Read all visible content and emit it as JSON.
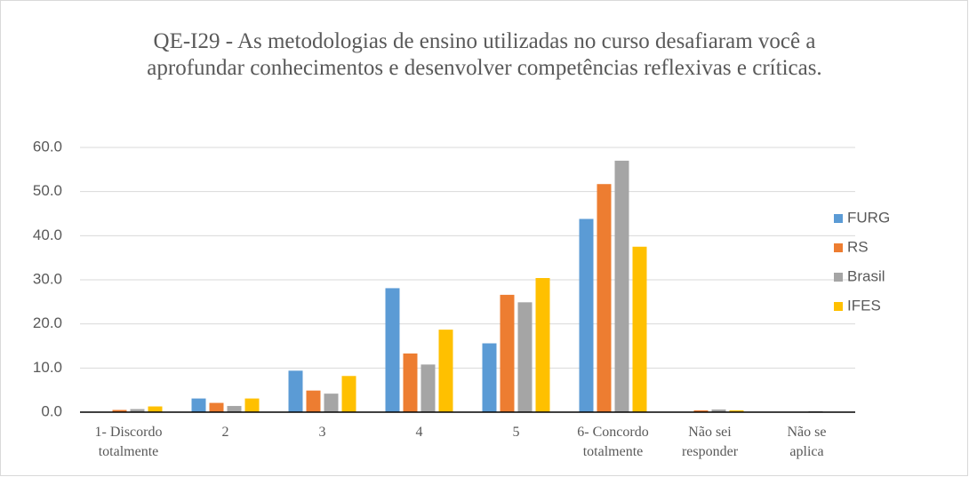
{
  "chart_data": {
    "type": "bar",
    "title": "QE-I29 - As metodologias de ensino utilizadas no curso desafiaram você a aprofundar conhecimentos e desenvolver competências reflexivas e críticas.",
    "categories": [
      "1- Discordo totalmente",
      "2",
      "3",
      "4",
      "5",
      "6- Concordo totalmente",
      "Não sei responder",
      "Não se aplica"
    ],
    "series": [
      {
        "name": "FURG",
        "color": "#5b9bd5",
        "values": [
          0,
          3.1,
          9.4,
          28.1,
          15.6,
          43.8,
          0,
          0
        ]
      },
      {
        "name": "RS",
        "color": "#ed7d31",
        "values": [
          0.5,
          2.1,
          4.9,
          13.3,
          26.6,
          51.7,
          0.4,
          0.1
        ]
      },
      {
        "name": "Brasil",
        "color": "#a5a5a5",
        "values": [
          0.7,
          1.4,
          4.2,
          10.8,
          24.9,
          57.0,
          0.6,
          0.2
        ]
      },
      {
        "name": "IFES",
        "color": "#ffc000",
        "values": [
          1.3,
          3.1,
          8.2,
          18.7,
          30.4,
          37.5,
          0.4,
          0.1
        ]
      }
    ],
    "ylim": [
      0,
      60
    ],
    "yticks": [
      {
        "value": 0,
        "label": "0.0"
      },
      {
        "value": 10,
        "label": "10.0"
      },
      {
        "value": 20,
        "label": "20.0"
      },
      {
        "value": 30,
        "label": "30.0"
      },
      {
        "value": 40,
        "label": "40.0"
      },
      {
        "value": 50,
        "label": "50.0"
      },
      {
        "value": 60,
        "label": "60.0"
      }
    ],
    "grid": true,
    "legend": "right"
  }
}
